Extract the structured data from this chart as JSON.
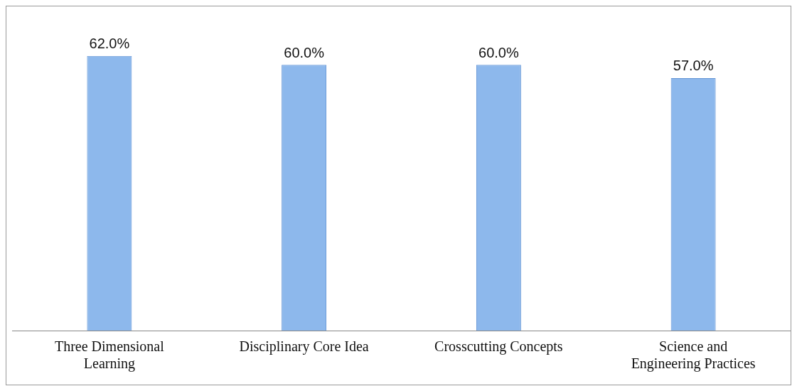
{
  "chart_data": {
    "type": "bar",
    "categories": [
      "Three Dimensional Learning",
      "Disciplinary Core Idea",
      "Crosscutting Concepts",
      "Science and Engineering Practices"
    ],
    "values": [
      62,
      60,
      60,
      57
    ],
    "color": "#8db8ec",
    "value_labels": [
      "62.0%",
      "60.0%",
      "60.0%",
      "57.0%"
    ],
    "tick_labels": "x",
    "grid": false,
    "legend": false
  }
}
